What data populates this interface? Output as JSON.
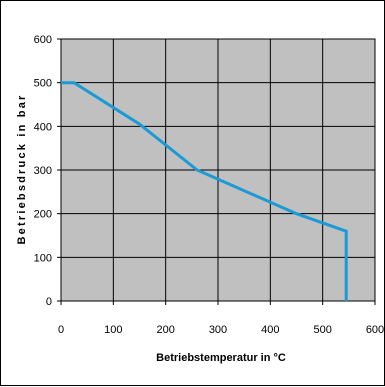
{
  "chart_data": {
    "type": "line",
    "xlabel": "Betriebstemperatur in °C",
    "ylabel": "Betriebsdruck in bar",
    "xlim": [
      0,
      600
    ],
    "ylim": [
      0,
      600
    ],
    "x_ticks": [
      0,
      100,
      200,
      300,
      400,
      500,
      600
    ],
    "y_ticks": [
      0,
      100,
      200,
      300,
      400,
      500,
      600
    ],
    "grid": true,
    "plot_background": "#c0c0c0",
    "gridline_color": "#000000",
    "series": [
      {
        "color": "#1a9ad6",
        "x": [
          0,
          25,
          150,
          260,
          450,
          540,
          545,
          545
        ],
        "y": [
          500,
          500,
          405,
          300,
          200,
          162,
          160,
          0
        ]
      }
    ]
  }
}
